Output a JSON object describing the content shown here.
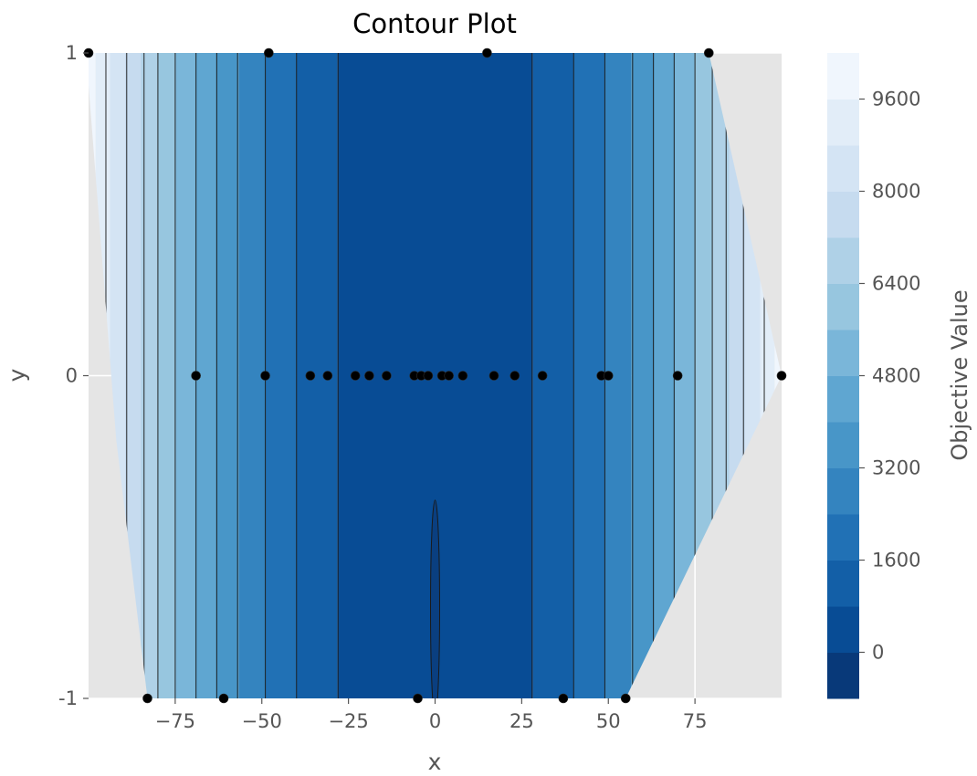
{
  "chart_data": {
    "type": "contour",
    "title": "Contour Plot",
    "xlabel": "x",
    "ylabel": "y",
    "xlim": [
      -100,
      100
    ],
    "ylim": [
      -1,
      1
    ],
    "x_ticks": [
      -75,
      -50,
      -25,
      0,
      25,
      50,
      75
    ],
    "x_tick_labels": [
      "−75",
      "−50",
      "−25",
      "0",
      "25",
      "50",
      "75"
    ],
    "y_ticks": [
      -1,
      0,
      1
    ],
    "y_tick_labels": [
      "-1",
      "0",
      "1"
    ],
    "background_color": "#e5e5e5",
    "grid": true,
    "colormap": "Blues_r",
    "colorbar": {
      "label": "Objective Value",
      "range": [
        -800,
        10400
      ],
      "level_step": 800,
      "ticks": [
        0,
        1600,
        3200,
        4800,
        6400,
        8000,
        9600
      ],
      "tick_labels": [
        "0",
        "1600",
        "3200",
        "4800",
        "6400",
        "8000",
        "9600"
      ]
    },
    "objective": "x^2",
    "contour_lines_x": [
      -95,
      -89,
      -84,
      -80,
      -75,
      -69,
      -63,
      -57,
      -49,
      -40,
      -28,
      28,
      40,
      49,
      57,
      63,
      69,
      75,
      80,
      84,
      89,
      95
    ],
    "hull_polygon": [
      [
        -100,
        0.9
      ],
      [
        -100,
        1
      ],
      [
        79,
        1
      ],
      [
        100,
        0
      ],
      [
        55,
        -1
      ],
      [
        -83,
        -1
      ],
      [
        -92,
        -0.2
      ]
    ],
    "points": [
      {
        "x": -69,
        "y": 0
      },
      {
        "x": -49,
        "y": 0
      },
      {
        "x": -36,
        "y": 0
      },
      {
        "x": -31,
        "y": 0
      },
      {
        "x": -23,
        "y": 0
      },
      {
        "x": -19,
        "y": 0
      },
      {
        "x": -14,
        "y": 0
      },
      {
        "x": -6,
        "y": 0
      },
      {
        "x": -4,
        "y": 0
      },
      {
        "x": -2,
        "y": 0
      },
      {
        "x": 2,
        "y": 0
      },
      {
        "x": 4,
        "y": 0
      },
      {
        "x": 8,
        "y": 0
      },
      {
        "x": 17,
        "y": 0
      },
      {
        "x": 23,
        "y": 0
      },
      {
        "x": 31,
        "y": 0
      },
      {
        "x": 48,
        "y": 0
      },
      {
        "x": 50,
        "y": 0
      },
      {
        "x": 70,
        "y": 0
      },
      {
        "x": 100,
        "y": 0
      },
      {
        "x": -48,
        "y": 1
      },
      {
        "x": 15,
        "y": 1
      },
      {
        "x": 79,
        "y": 1
      },
      {
        "x": -100,
        "y": 1
      },
      {
        "x": -83,
        "y": -1
      },
      {
        "x": -61,
        "y": -1
      },
      {
        "x": -5,
        "y": -1
      },
      {
        "x": 37,
        "y": -1
      },
      {
        "x": 55,
        "y": -1
      }
    ]
  }
}
